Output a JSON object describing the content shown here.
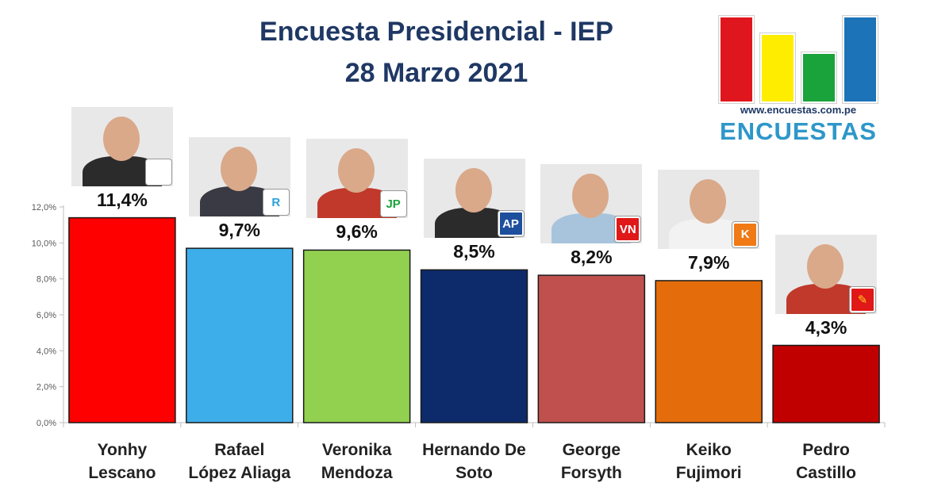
{
  "header": {
    "title_line1": "Encuesta Presidencial - IEP",
    "title_line2": "28 Marzo 2021"
  },
  "logo": {
    "url_text": "www.encuestas.com.pe",
    "name": "ENCUESTAS",
    "bar_colors": [
      "#e0161e",
      "#ffed00",
      "#1aa33a",
      "#1d73b8"
    ]
  },
  "chart_data": {
    "type": "bar",
    "title": "Encuesta Presidencial - IEP 28 Marzo 2021",
    "categories": [
      "Yonhy Lescano",
      "Rafael López Aliaga",
      "Veronika Mendoza",
      "Hernando De Soto",
      "George Forsyth",
      "Keiko Fujimori",
      "Pedro Castillo"
    ],
    "category_lines": [
      [
        "Yonhy",
        "Lescano"
      ],
      [
        "Rafael",
        "López Aliaga"
      ],
      [
        "Veronika",
        "Mendoza"
      ],
      [
        "Hernando De",
        "Soto"
      ],
      [
        "George",
        "Forsyth"
      ],
      [
        "Keiko",
        "Fujimori"
      ],
      [
        "Pedro",
        "Castillo"
      ]
    ],
    "values": [
      11.4,
      9.7,
      9.6,
      8.5,
      8.2,
      7.9,
      4.3
    ],
    "value_labels": [
      "11,4%",
      "9,7%",
      "9,6%",
      "8,5%",
      "8,2%",
      "7,9%",
      "4,3%"
    ],
    "colors": [
      "#ff0000",
      "#3daee9",
      "#92d050",
      "#0d2b6b",
      "#c0504d",
      "#e46c0a",
      "#c00000"
    ],
    "ylim": [
      0,
      12
    ],
    "yticks": [
      0,
      2,
      4,
      6,
      8,
      10,
      12
    ],
    "ytick_labels": [
      "0,0%",
      "2,0%",
      "4,0%",
      "6,0%",
      "8,0%",
      "10,0%",
      "12,0%"
    ],
    "grid": false,
    "legend": "none"
  },
  "candidates": [
    {
      "badge_text": "",
      "badge_color": "#ffffff",
      "badge_fg": "#c00000",
      "body_color": "#2b2b2b",
      "icon": "shovel-icon"
    },
    {
      "badge_text": "R",
      "badge_color": "#ffffff",
      "badge_fg": "#29a3d8",
      "body_color": "#3a3a44",
      "icon": "r-letter-icon"
    },
    {
      "badge_text": "JP",
      "badge_color": "#ffffff",
      "badge_fg": "#1aa33a",
      "body_color": "#c0392b",
      "icon": "jp-logo-icon"
    },
    {
      "badge_text": "AP",
      "badge_color": "#1d4f9c",
      "badge_fg": "#ffffff",
      "body_color": "#2b2b2b",
      "icon": "avanza-pais-icon"
    },
    {
      "badge_text": "VN",
      "badge_color": "#e01818",
      "badge_fg": "#ffffff",
      "body_color": "#a8c4dc",
      "icon": "bell-icon"
    },
    {
      "badge_text": "K",
      "badge_color": "#f07a16",
      "badge_fg": "#ffffff",
      "body_color": "#f2f2f2",
      "icon": "k-letter-icon"
    },
    {
      "badge_text": "✎",
      "badge_color": "#e01818",
      "badge_fg": "#ffd21e",
      "body_color": "#c0392b",
      "icon": "pencil-icon"
    }
  ]
}
